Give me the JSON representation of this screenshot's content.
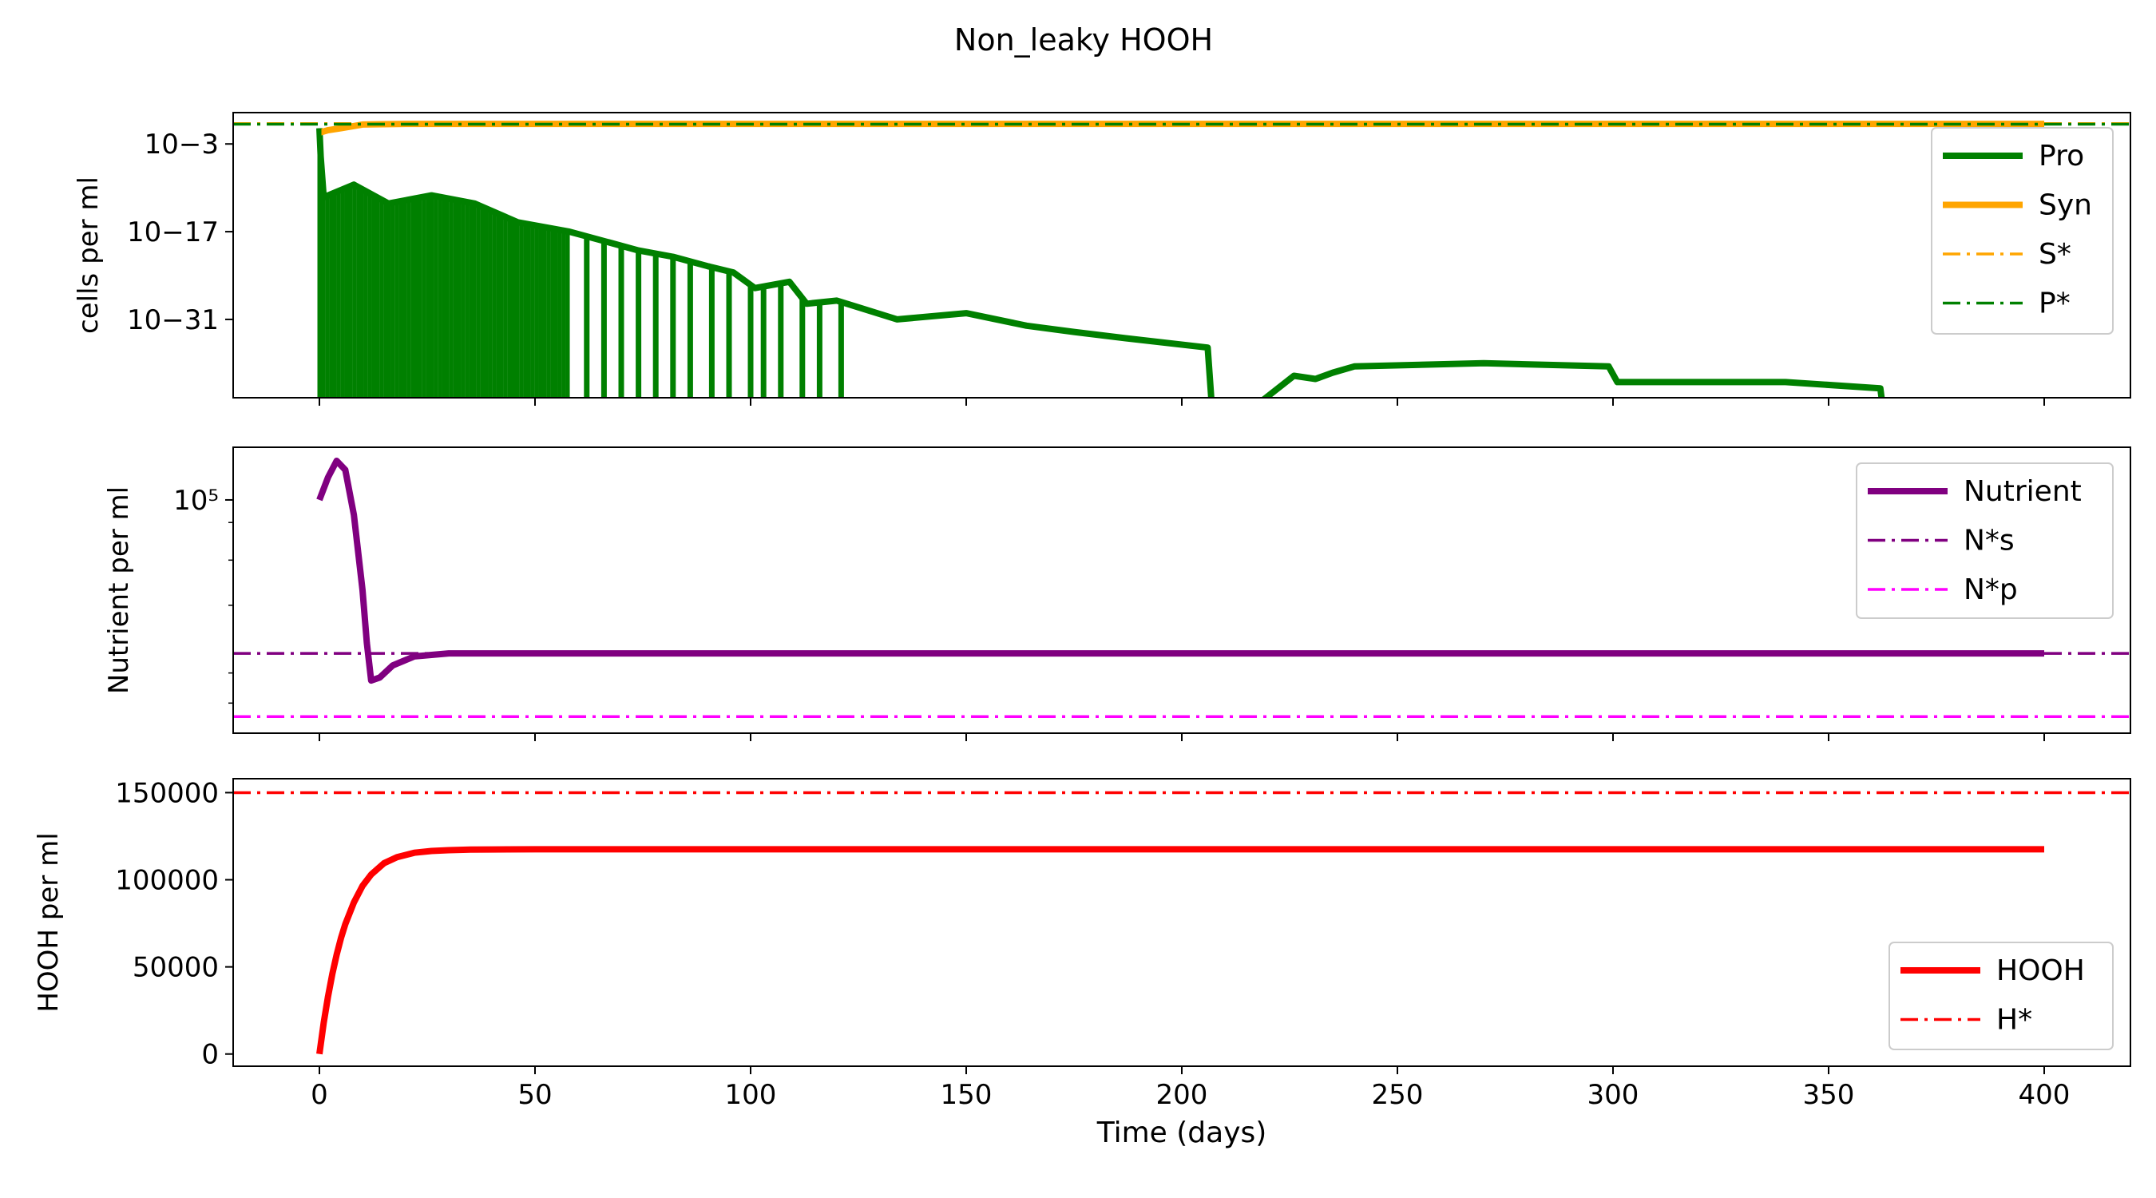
{
  "figure": {
    "title": "Non_leaky HOOH"
  },
  "chart_data": [
    {
      "type": "line",
      "ylabel": "cells per ml",
      "yscale": "log",
      "xlim": [
        -20,
        420
      ],
      "ytick_labels": [
        "10−3",
        "10−17",
        "10−31"
      ],
      "series": [
        {
          "name": "Pro",
          "color": "#008000",
          "style": "solid",
          "x": [
            0,
            0.3,
            1,
            8,
            16,
            26,
            36,
            46,
            58,
            66,
            74,
            82,
            90,
            96,
            101,
            109,
            113,
            120,
            134,
            150,
            164,
            175,
            187,
            206,
            207.5,
            226,
            231,
            235,
            240,
            270,
            299,
            301,
            340,
            362,
            363.5
          ],
          "y": [
            -0.5,
            -5,
            -11.5,
            -9.5,
            -12.5,
            -11.2,
            -12.5,
            -15.5,
            -17,
            -18.5,
            -20,
            -21,
            -22.5,
            -23.5,
            -26,
            -25,
            -28.5,
            -28,
            -31,
            -30,
            -32,
            -33,
            -34,
            -35.5,
            -50,
            -40,
            -40.5,
            -39.5,
            -38.5,
            -38,
            -38.5,
            -41,
            -41,
            -42,
            -50
          ]
        },
        {
          "name": "Syn",
          "color": "#ffa500",
          "style": "solid",
          "x": [
            0,
            2,
            5,
            10,
            20,
            50,
            100,
            200,
            300,
            400
          ],
          "y": [
            -1.2,
            -0.8,
            -0.5,
            0.1,
            0.2,
            0.2,
            0.2,
            0.2,
            0.2,
            0.2
          ]
        },
        {
          "name": "S*",
          "color": "#ffa500",
          "style": "dashdot",
          "x": [
            -20,
            420
          ],
          "y": [
            0.25,
            0.25
          ]
        },
        {
          "name": "P*",
          "color": "#008000",
          "style": "dashdot",
          "x": [
            -20,
            420
          ],
          "y": [
            0.15,
            0.15
          ]
        }
      ]
    },
    {
      "type": "line",
      "ylabel": "Nutrient per ml",
      "yscale": "log",
      "xlim": [
        -20,
        420
      ],
      "ytick_labels": [
        "10⁵"
      ],
      "series": [
        {
          "name": "Nutrient",
          "color": "#800080",
          "style": "solid",
          "x": [
            0,
            2,
            4,
            6,
            8,
            10,
            11,
            12,
            14,
            17,
            22,
            30,
            50,
            100,
            200,
            300,
            400
          ],
          "y": [
            5.0,
            5.15,
            5.26,
            5.2,
            4.9,
            4.4,
            4.05,
            3.8,
            3.82,
            3.9,
            3.96,
            3.98,
            3.98,
            3.98,
            3.98,
            3.98,
            3.98
          ]
        },
        {
          "name": "N*s",
          "color": "#800080",
          "style": "dashdot",
          "x": [
            -20,
            420
          ],
          "y": [
            3.98,
            3.98
          ]
        },
        {
          "name": "N*p",
          "color": "#ff00ff",
          "style": "dashdot",
          "x": [
            -20,
            420
          ],
          "y": [
            3.56,
            3.56
          ]
        }
      ]
    },
    {
      "type": "line",
      "xlabel": "Time (days)",
      "ylabel": "HOOH per ml",
      "xlim": [
        -20,
        420
      ],
      "ylim": [
        -7000,
        158000
      ],
      "xticks": [
        0,
        50,
        100,
        150,
        200,
        250,
        300,
        350,
        400
      ],
      "yticks": [
        0,
        50000,
        100000,
        150000
      ],
      "series": [
        {
          "name": "HOOH",
          "color": "#ff0000",
          "style": "solid",
          "x": [
            0,
            1,
            2,
            3,
            4,
            5,
            6,
            8,
            10,
            12,
            15,
            18,
            22,
            26,
            30,
            35,
            40,
            50,
            100,
            200,
            300,
            400
          ],
          "y": [
            0,
            18000,
            33000,
            46000,
            57000,
            66500,
            74500,
            87000,
            96500,
            103000,
            109500,
            113000,
            115500,
            116500,
            117000,
            117300,
            117400,
            117500,
            117500,
            117500,
            117500,
            117500
          ]
        },
        {
          "name": "H*",
          "color": "#ff0000",
          "style": "dashdot",
          "x": [
            -20,
            420
          ],
          "y": [
            150000,
            150000
          ]
        }
      ]
    }
  ]
}
